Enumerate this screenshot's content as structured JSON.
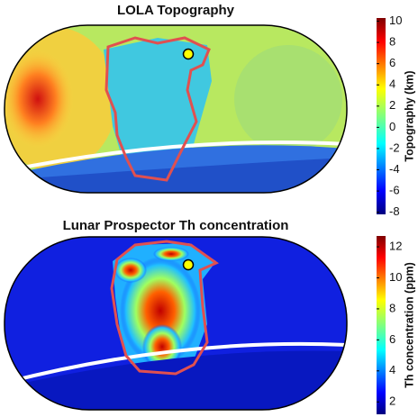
{
  "chart_data": [
    {
      "type": "map",
      "title": "LOLA Topography",
      "colorbar_label": "Topography (km)",
      "clim": [
        -8.2,
        10.3
      ],
      "ticks": [
        -8,
        -6,
        -4,
        -2,
        0,
        2,
        4,
        6,
        8,
        10
      ]
    },
    {
      "type": "map",
      "title": "Lunar Prospector Th concentration",
      "colorbar_label": "Th concentration (ppm)",
      "clim": [
        1.2,
        12.7
      ],
      "ticks": [
        2,
        4,
        6,
        8,
        10,
        12
      ]
    }
  ]
}
